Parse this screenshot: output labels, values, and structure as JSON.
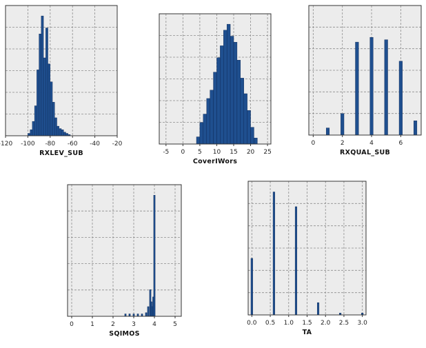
{
  "colors": {
    "bar": "#1f4f8f",
    "bar_edge": "#0a2450",
    "plot_bg": "#ececec",
    "grid": "#8c8c8c",
    "frame": "#333333"
  },
  "chart_data": [
    {
      "type": "bar",
      "xlabel": "RXLEV_SUB",
      "xlim": [
        -120,
        -20
      ],
      "xticks": [
        -120,
        -100,
        -80,
        -60,
        -40,
        -20
      ],
      "y_gridlines": 6,
      "grid": true,
      "bar_width": 2,
      "x": [
        -99,
        -97,
        -95,
        -93,
        -91,
        -89,
        -87,
        -85,
        -83,
        -81,
        -79,
        -77,
        -75,
        -73,
        -71,
        -69,
        -67,
        -65,
        -63
      ],
      "values": [
        0.02,
        0.05,
        0.12,
        0.25,
        0.55,
        0.85,
        1.0,
        0.65,
        0.9,
        0.6,
        0.45,
        0.28,
        0.15,
        0.08,
        0.06,
        0.05,
        0.03,
        0.02,
        0.01
      ]
    },
    {
      "type": "bar",
      "xlabel": "CoverIWors",
      "xlim": [
        -7,
        26
      ],
      "xticks": [
        -5,
        0,
        5,
        10,
        15,
        20,
        25
      ],
      "y_gridlines": 6,
      "grid": true,
      "bar_width": 1,
      "x": [
        4.5,
        5.5,
        6.5,
        7.5,
        8.5,
        9.5,
        10.5,
        11.5,
        12.5,
        13.5,
        14.5,
        15.5,
        16.5,
        17.5,
        18.5,
        19.5,
        20.5,
        21.5
      ],
      "values": [
        0.06,
        0.18,
        0.25,
        0.38,
        0.45,
        0.6,
        0.72,
        0.82,
        0.95,
        1.0,
        0.9,
        0.85,
        0.7,
        0.55,
        0.42,
        0.28,
        0.14,
        0.05
      ]
    },
    {
      "type": "bar",
      "xlabel": "RXQUAL_SUB",
      "xlim": [
        -0.3,
        7.4
      ],
      "xticks": [
        0,
        2,
        4,
        6
      ],
      "y_gridlines": 6,
      "grid": true,
      "bar_width": 0.22,
      "x": [
        1,
        2,
        3,
        4,
        5,
        6,
        7
      ],
      "values": [
        0.06,
        0.18,
        0.78,
        0.82,
        0.8,
        0.62,
        0.12
      ]
    },
    {
      "type": "bar",
      "xlabel": "SQIMOS",
      "xlim": [
        -0.2,
        5.3
      ],
      "xticks": [
        0,
        1,
        2,
        3,
        4,
        5
      ],
      "y_gridlines": 5,
      "grid": true,
      "bar_width": 0.05,
      "x": [
        2.6,
        2.8,
        3.0,
        3.2,
        3.4,
        3.6,
        3.7,
        3.8,
        3.85,
        3.9,
        3.95,
        4.0
      ],
      "values": [
        0.02,
        0.02,
        0.02,
        0.02,
        0.02,
        0.03,
        0.08,
        0.22,
        0.12,
        0.08,
        0.16,
        1.0
      ]
    },
    {
      "type": "bar",
      "xlabel": "TA",
      "xlim": [
        -0.1,
        3.1
      ],
      "xticks": [
        0.0,
        0.5,
        1.0,
        1.5,
        2.0,
        2.5,
        3.0
      ],
      "xtick_format": "fixed1",
      "y_gridlines": 6,
      "grid": true,
      "bar_width": 0.05,
      "x": [
        0.0,
        0.6,
        1.2,
        1.8,
        2.4,
        3.0
      ],
      "values": [
        0.46,
        1.0,
        0.88,
        0.1,
        0.015,
        0.015
      ]
    }
  ]
}
